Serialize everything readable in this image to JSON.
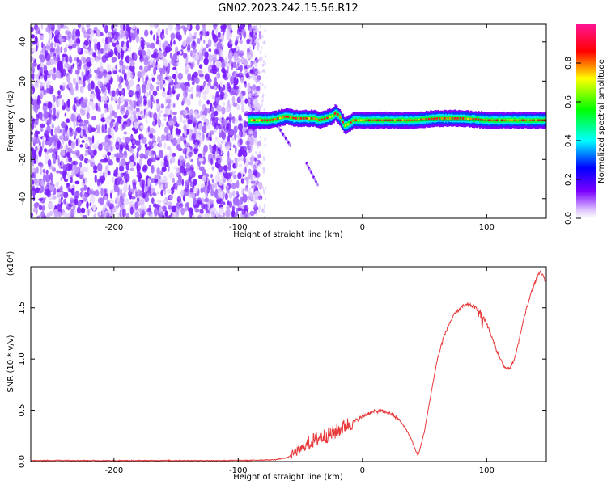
{
  "title": "GN02.2023.242.15.56.R12",
  "chart_data": [
    {
      "type": "heatmap",
      "xlabel": "Height of straight line (km)",
      "ylabel": "Frequency (Hz)",
      "xlim": [
        -267,
        148
      ],
      "ylim": [
        -50,
        49
      ],
      "x_ticks": [
        -200,
        -100,
        0,
        100
      ],
      "y_ticks": [
        -40,
        -20,
        0,
        20,
        40
      ],
      "colorbar": {
        "label": "Normalized spectral amplitude",
        "range": [
          0.0,
          1.0
        ],
        "ticks": [
          "0.0",
          "0.2",
          "0.4",
          "0.6",
          "0.8"
        ],
        "colors": [
          "#ffffff",
          "#7b00ff",
          "#0000ff",
          "#00ffff",
          "#00ff00",
          "#ffff00",
          "#ff0000",
          "#ff1493"
        ]
      },
      "regions": [
        {
          "description": "noise",
          "x_range": [
            -267,
            -82
          ],
          "freq_range": [
            -50,
            49
          ],
          "amplitude": [
            0.0,
            0.25
          ]
        },
        {
          "description": "signal",
          "x_range": [
            -92,
            148
          ],
          "amplitude": [
            0.3,
            1.0
          ]
        }
      ],
      "signal_track": {
        "x": [
          -92,
          -85,
          -75,
          -68,
          -62,
          -55,
          -48,
          -40,
          -35,
          -30,
          -25,
          -22,
          -18,
          -15,
          -12,
          -8,
          -3,
          0,
          20,
          40,
          60,
          80,
          100,
          120,
          148
        ],
        "frequency": [
          0,
          0,
          0,
          1,
          2,
          1,
          1,
          1,
          0,
          1,
          2,
          4,
          1,
          -3,
          -2,
          0,
          0,
          0,
          0,
          0,
          1,
          1,
          0,
          0,
          0
        ]
      },
      "side_streaks": [
        {
          "x": [
            -68,
            -58
          ],
          "frequency": [
            -3,
            -13
          ]
        },
        {
          "x": [
            -45,
            -36
          ],
          "frequency": [
            -22,
            -33
          ]
        }
      ]
    },
    {
      "type": "line",
      "xlabel": "Height of straight line (km)",
      "ylabel": "SNR (10 * v/v)",
      "y_multiplier": "(x10⁴)",
      "xlim": [
        -267,
        148
      ],
      "ylim": [
        0,
        19000
      ],
      "x_ticks": [
        -200,
        -100,
        0,
        100
      ],
      "y_ticks": [
        "0.0",
        "0.5",
        "1.0",
        "1.5"
      ],
      "color": "#e8393b",
      "series": [
        {
          "x": [
            -267,
            -240,
            -200,
            -160,
            -120,
            -90,
            -70,
            -60,
            -55,
            -50,
            -45,
            -40,
            -35,
            -30,
            -25,
            -20,
            -15,
            -10,
            -5,
            0,
            5,
            10,
            15,
            20,
            25,
            30,
            35,
            40,
            43,
            45,
            50,
            55,
            60,
            65,
            70,
            75,
            80,
            85,
            90,
            95,
            100,
            105,
            110,
            115,
            118,
            122,
            126,
            130,
            135,
            140,
            143,
            146,
            148
          ],
          "y": [
            100,
            120,
            90,
            110,
            100,
            120,
            180,
            400,
            800,
            1200,
            1600,
            2000,
            2300,
            2500,
            2700,
            3000,
            3400,
            3700,
            4000,
            4400,
            4700,
            4900,
            4900,
            4800,
            4500,
            4000,
            3200,
            2000,
            1000,
            600,
            3000,
            6500,
            9800,
            12000,
            13500,
            14500,
            15100,
            15300,
            15100,
            14600,
            13500,
            11800,
            10200,
            9100,
            9000,
            9800,
            11800,
            14000,
            16200,
            17800,
            18500,
            18000,
            17500
          ]
        }
      ]
    }
  ]
}
